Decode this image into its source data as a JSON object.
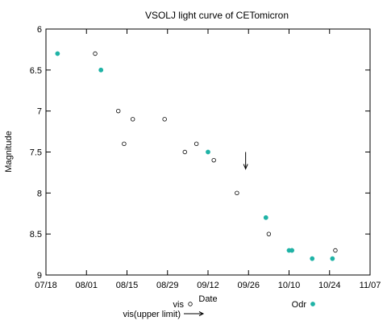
{
  "chart_data": {
    "type": "scatter",
    "title": "VSOLJ light curve of CETomicron",
    "xlabel": "Date",
    "ylabel": "Magnitude",
    "x_type": "date",
    "xlim": [
      "07/18",
      "11/07"
    ],
    "ylim": [
      9,
      6
    ],
    "y_inverted": true,
    "x_ticks": [
      "07/18",
      "08/01",
      "08/15",
      "08/29",
      "09/12",
      "09/26",
      "10/10",
      "10/24",
      "11/07"
    ],
    "y_ticks": [
      6,
      6.5,
      7,
      7.5,
      8,
      8.5,
      9
    ],
    "grid": false,
    "legend_position": "bottom",
    "series": [
      {
        "name": "vis",
        "marker": "open-circle",
        "color": "#000000",
        "points": [
          {
            "x": "08/04",
            "y": 6.3
          },
          {
            "x": "08/12",
            "y": 7.0
          },
          {
            "x": "08/14",
            "y": 7.4
          },
          {
            "x": "08/17",
            "y": 7.1
          },
          {
            "x": "08/28",
            "y": 7.1
          },
          {
            "x": "09/04",
            "y": 7.5
          },
          {
            "x": "09/08",
            "y": 7.4
          },
          {
            "x": "09/14",
            "y": 7.6
          },
          {
            "x": "09/22",
            "y": 8.0
          },
          {
            "x": "10/03",
            "y": 8.5
          },
          {
            "x": "10/11",
            "y": 8.7
          },
          {
            "x": "10/26",
            "y": 8.7
          }
        ]
      },
      {
        "name": "vis(upper limit)",
        "marker": "down-arrow",
        "color": "#000000",
        "points": [
          {
            "x": "09/25",
            "y": 7.5
          }
        ]
      },
      {
        "name": "Odr",
        "marker": "filled-circle",
        "color": "#1fb3a6",
        "points": [
          {
            "x": "07/22",
            "y": 6.3
          },
          {
            "x": "08/06",
            "y": 6.5
          },
          {
            "x": "09/12",
            "y": 7.5
          },
          {
            "x": "10/02",
            "y": 8.3
          },
          {
            "x": "10/10",
            "y": 8.7
          },
          {
            "x": "10/11",
            "y": 8.7
          },
          {
            "x": "10/18",
            "y": 8.8
          },
          {
            "x": "10/25",
            "y": 8.8
          }
        ]
      }
    ]
  }
}
